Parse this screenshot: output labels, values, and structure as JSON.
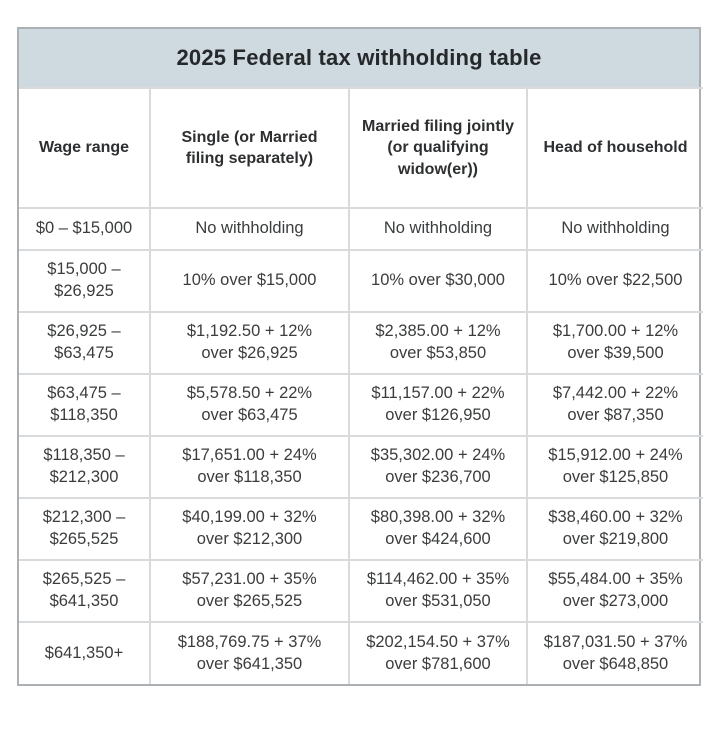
{
  "title": "2025 Federal tax withholding table",
  "table": {
    "columns": [
      "Wage range",
      "Single (or Married\nfiling separately)",
      "Married filing jointly\n(or qualifying\nwidow(er))",
      "Head of household"
    ],
    "rows": [
      [
        "$0 – $15,000",
        "No withholding",
        "No withholding",
        "No withholding"
      ],
      [
        "$15,000 –\n$26,925",
        "10% over $15,000",
        "10% over $30,000",
        "10% over $22,500"
      ],
      [
        "$26,925 –\n$63,475",
        "$1,192.50 + 12%\nover $26,925",
        "$2,385.00 + 12%\nover $53,850",
        "$1,700.00 + 12%\nover $39,500"
      ],
      [
        "$63,475 –\n$118,350",
        "$5,578.50 + 22%\nover $63,475",
        "$11,157.00 + 22%\nover $126,950",
        "$7,442.00 + 22%\nover $87,350"
      ],
      [
        "$118,350 –\n$212,300",
        "$17,651.00 + 24%\nover $118,350",
        "$35,302.00 + 24%\nover $236,700",
        "$15,912.00 + 24%\nover $125,850"
      ],
      [
        "$212,300 –\n$265,525",
        "$40,199.00 + 32%\nover $212,300",
        "$80,398.00 + 32%\nover $424,600",
        "$38,460.00 + 32%\nover $219,800"
      ],
      [
        "$265,525 –\n$641,350",
        "$57,231.00 + 35%\nover $265,525",
        "$114,462.00 + 35%\nover $531,050",
        "$55,484.00 + 35%\nover $273,000"
      ],
      [
        "$641,350+",
        "$188,769.75 + 37%\nover $641,350",
        "$202,154.50 + 37%\nover $781,600",
        "$187,031.50 + 37%\nover $648,850"
      ]
    ]
  },
  "colors": {
    "title_band": "#cfd9e0",
    "outer_border": "#aab0b4",
    "inner_border": "#d8dadc",
    "text": "#3a3c3e",
    "background": "#ffffff"
  }
}
